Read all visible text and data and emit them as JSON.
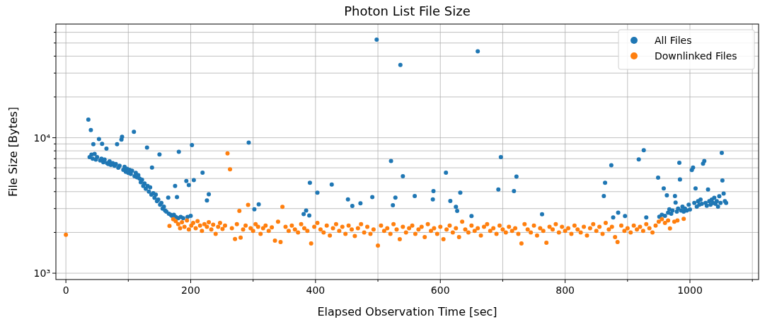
{
  "chart_data": {
    "type": "scatter",
    "title": "Photon List File Size",
    "xlabel": "Elapsed Observation Time [sec]",
    "ylabel": "File Size [Bytes]",
    "xlim": [
      -16,
      1110
    ],
    "xticks": [
      0,
      {
        "value": 100,
        "label": null
      },
      200,
      {
        "value": 300,
        "label": null
      },
      400,
      {
        "value": 500,
        "label": null
      },
      600,
      {
        "value": 700,
        "label": null
      },
      800,
      {
        "value": 900,
        "label": null
      },
      1000,
      {
        "value": 1100,
        "label": null
      }
    ],
    "ylim": [
      898,
      69000
    ],
    "yticks": [
      {
        "value": 1000,
        "label": "10³"
      },
      {
        "value": 2000,
        "label": null
      },
      {
        "value": 3000,
        "label": null
      },
      {
        "value": 4000,
        "label": null
      },
      {
        "value": 5000,
        "label": null
      },
      {
        "value": 6000,
        "label": null
      },
      {
        "value": 7000,
        "label": null
      },
      {
        "value": 8000,
        "label": null
      },
      {
        "value": 9000,
        "label": null
      },
      {
        "value": 10000,
        "label": "10⁴"
      },
      {
        "value": 20000,
        "label": null
      },
      {
        "value": 30000,
        "label": null
      },
      {
        "value": 40000,
        "label": null
      },
      {
        "value": 50000,
        "label": null
      },
      {
        "value": 60000,
        "label": null
      }
    ],
    "log": "y",
    "grid": true,
    "legend": "top right",
    "marker": "circle",
    "series": [
      {
        "name": "All Files",
        "color": "#1f77b4",
        "x": [
          36,
          38,
          40,
          41,
          43,
          44,
          46,
          48,
          50,
          53,
          55,
          57,
          58,
          60,
          62,
          65,
          66,
          68,
          70,
          72,
          75,
          78,
          80,
          82,
          84,
          86,
          89,
          90,
          92,
          94,
          96,
          98,
          100,
          102,
          104,
          106,
          109,
          110,
          112,
          114,
          116,
          118,
          120,
          122,
          124,
          126,
          128,
          130,
          131,
          133,
          135,
          137,
          138,
          140,
          142,
          144,
          146,
          148,
          150,
          151,
          153,
          155,
          157,
          159,
          161,
          164,
          165,
          168,
          170,
          173,
          175,
          176,
          178,
          180,
          181,
          184,
          188,
          193,
          195,
          197,
          200,
          202,
          205,
          219,
          226,
          229,
          293,
          302,
          309,
          381,
          385,
          390,
          391,
          403,
          426,
          452,
          459,
          472,
          491,
          498,
          521,
          524,
          528,
          536,
          540,
          559,
          588,
          589,
          609,
          616,
          625,
          627,
          632,
          650,
          660,
          693,
          697,
          718,
          722,
          763,
          862,
          864,
          874,
          877,
          885,
          896,
          918,
          926,
          930,
          949,
          951,
          955,
          958,
          960,
          963,
          965,
          967,
          970,
          972,
          976,
          977,
          979,
          981,
          983,
          984,
          986,
          988,
          990,
          992,
          995,
          998,
          1000,
          1003,
          1005,
          1007,
          1009,
          1011,
          1013,
          1015,
          1017,
          1019,
          1021,
          1023,
          1025,
          1027,
          1029,
          1031,
          1033,
          1035,
          1037,
          1039,
          1041,
          1043,
          1045,
          1047,
          1049,
          1051,
          1052,
          1054,
          1056,
          1058
        ],
        "values": [
          13600,
          7200,
          11400,
          7500,
          7000,
          8950,
          7600,
          6900,
          7200,
          9760,
          6800,
          7000,
          9020,
          6600,
          6900,
          8320,
          6500,
          6400,
          6700,
          6300,
          6500,
          6200,
          6400,
          8950,
          6000,
          6200,
          9700,
          10170,
          5800,
          6100,
          5600,
          5900,
          5500,
          5800,
          5400,
          5700,
          11060,
          5200,
          5500,
          5100,
          5300,
          5000,
          4700,
          4900,
          4400,
          4600,
          4200,
          8450,
          4400,
          4000,
          4300,
          3800,
          6030,
          3900,
          3600,
          3800,
          3400,
          3500,
          7520,
          3200,
          3300,
          3000,
          3100,
          2900,
          2850,
          3610,
          2750,
          2700,
          2650,
          2700,
          4410,
          2600,
          3650,
          2550,
          7860,
          2600,
          2550,
          4800,
          2600,
          4470,
          2650,
          8830,
          4860,
          5520,
          3440,
          3820,
          9200,
          2960,
          3220,
          2730,
          2900,
          2670,
          4650,
          3930,
          4520,
          3510,
          3140,
          3280,
          3650,
          53000,
          6730,
          3170,
          3610,
          34400,
          5200,
          3710,
          3510,
          4040,
          5520,
          3410,
          3090,
          2880,
          3930,
          2640,
          43400,
          4150,
          7200,
          4040,
          5160,
          2720,
          3710,
          4650,
          6260,
          2580,
          2800,
          2640,
          6920,
          8090,
          2580,
          5080,
          2610,
          2700,
          4220,
          2650,
          3760,
          2800,
          2960,
          2750,
          2900,
          3710,
          3320,
          2850,
          3000,
          6540,
          4920,
          2900,
          3100,
          2850,
          3000,
          2900,
          3200,
          2950,
          5770,
          6030,
          3300,
          4220,
          3100,
          3400,
          3200,
          3500,
          3250,
          6440,
          6730,
          3300,
          3150,
          4150,
          3400,
          3200,
          3500,
          3300,
          3600,
          3250,
          3400,
          3100,
          3700,
          3300,
          7740,
          4840,
          3870,
          3400,
          3300
        ]
      },
      {
        "name": "Downlinked Files",
        "color": "#ff7f0e",
        "x": [
          0,
          166,
          172,
          176,
          180,
          183,
          186,
          190,
          194,
          197,
          201,
          204,
          208,
          211,
          215,
          218,
          222,
          226,
          229,
          233,
          236,
          240,
          244,
          247,
          251,
          255,
          259,
          263,
          266,
          271,
          274,
          278,
          280,
          284,
          288,
          292,
          296,
          300,
          304,
          308,
          312,
          316,
          320,
          325,
          330,
          335,
          340,
          344,
          347,
          352,
          357,
          362,
          367,
          372,
          377,
          382,
          387,
          393,
          398,
          403,
          408,
          413,
          418,
          423,
          428,
          433,
          438,
          443,
          448,
          453,
          458,
          463,
          468,
          473,
          478,
          483,
          488,
          493,
          500,
          505,
          510,
          515,
          520,
          525,
          530,
          535,
          540,
          545,
          550,
          555,
          560,
          565,
          570,
          575,
          580,
          585,
          590,
          595,
          600,
          605,
          610,
          615,
          620,
          625,
          630,
          635,
          640,
          645,
          650,
          655,
          660,
          665,
          670,
          675,
          680,
          685,
          690,
          695,
          700,
          705,
          710,
          715,
          720,
          725,
          730,
          735,
          740,
          745,
          750,
          755,
          760,
          765,
          770,
          775,
          780,
          785,
          790,
          795,
          800,
          805,
          810,
          815,
          820,
          825,
          830,
          835,
          840,
          845,
          850,
          855,
          860,
          865,
          870,
          875,
          880,
          884,
          890,
          895,
          900,
          905,
          910,
          915,
          920,
          925,
          930,
          935,
          940,
          945,
          950,
          955,
          960,
          965,
          968,
          975,
          980,
          990
        ],
        "values": [
          1920,
          2230,
          2500,
          2420,
          2300,
          2150,
          2380,
          2200,
          2450,
          2100,
          2250,
          2350,
          2150,
          2420,
          2250,
          2050,
          2300,
          2200,
          2380,
          2100,
          2280,
          1950,
          2200,
          2350,
          2120,
          2250,
          7650,
          5850,
          2150,
          1790,
          2300,
          2880,
          1830,
          2100,
          2250,
          3190,
          2150,
          2050,
          2300,
          2200,
          1950,
          2150,
          2250,
          2050,
          2180,
          1740,
          2400,
          1700,
          3090,
          2200,
          2050,
          2250,
          2100,
          2000,
          2300,
          2150,
          2050,
          1660,
          2200,
          2350,
          2100,
          2000,
          2250,
          1900,
          2150,
          2300,
          2050,
          2200,
          1950,
          2250,
          2100,
          1880,
          2150,
          2300,
          2000,
          2200,
          1950,
          2100,
          1600,
          2250,
          2050,
          2150,
          1950,
          2300,
          2100,
          1780,
          2200,
          2000,
          2150,
          2250,
          1950,
          2100,
          2200,
          1850,
          2300,
          2050,
          2150,
          1950,
          2200,
          1780,
          2100,
          2250,
          2000,
          2150,
          1850,
          2400,
          2100,
          2000,
          2250,
          2050,
          2150,
          1900,
          2200,
          2300,
          2050,
          2150,
          1950,
          2250,
          2100,
          2000,
          2200,
          2050,
          2150,
          1950,
          1660,
          2300,
          2100,
          2000,
          2250,
          1900,
          2150,
          2050,
          1680,
          2200,
          2100,
          2300,
          2000,
          2200,
          2050,
          2150,
          1950,
          2250,
          2100,
          2000,
          2200,
          1900,
          2150,
          2300,
          2050,
          2200,
          1950,
          2350,
          2100,
          2200,
          1850,
          1700,
          2250,
          2050,
          2150,
          2000,
          2250,
          2100,
          2200,
          2050,
          2300,
          2150,
          2000,
          2250,
          2400,
          2500,
          2350,
          2450,
          2140,
          2400,
          2450,
          2520
        ]
      }
    ]
  }
}
